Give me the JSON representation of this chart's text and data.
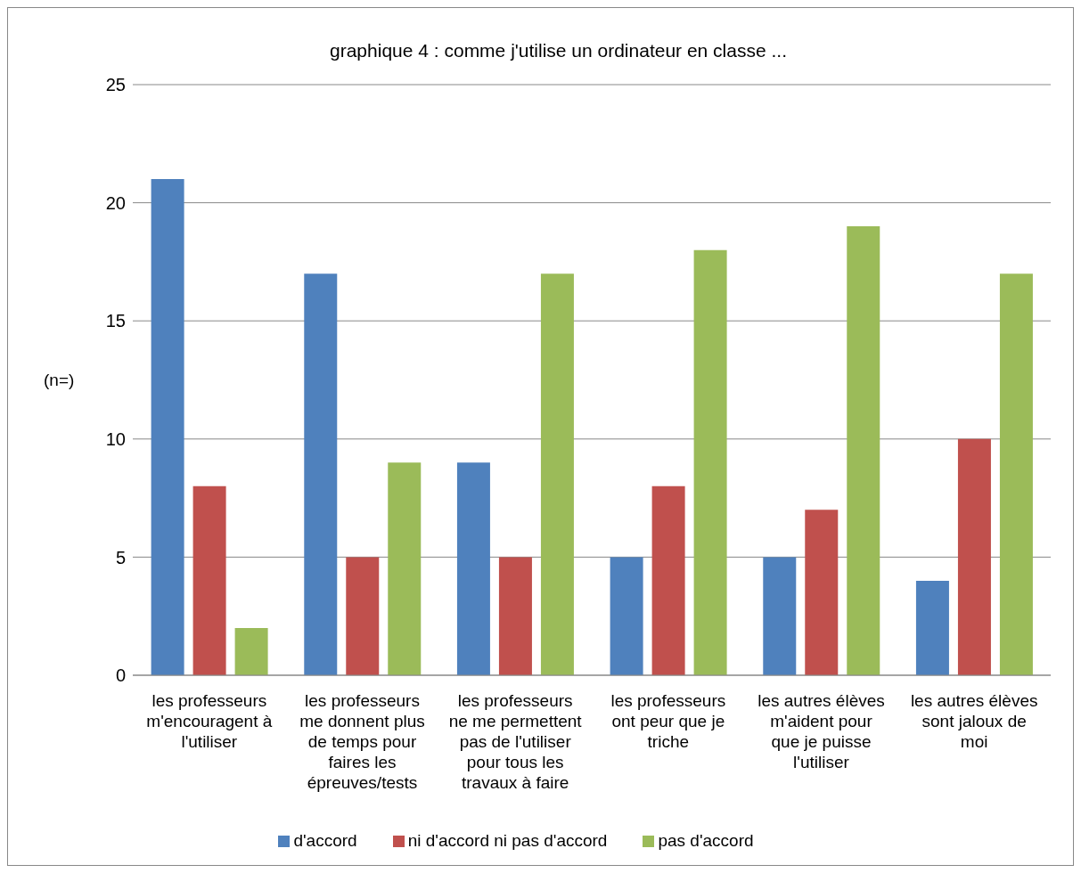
{
  "chart_data": {
    "type": "bar",
    "title": "graphique 4 : comme j'utilise un ordinateur en classe ...",
    "ylabel": "(n=)",
    "categories": [
      "les professeurs m'encouragent à l'utiliser",
      "les professeurs me donnent plus de temps pour faires les épreuves/tests",
      "les professeurs ne me permettent pas de l'utiliser pour tous les travaux à faire",
      "les professeurs ont peur que je triche",
      "les autres élèves m'aident pour que je puisse l'utiliser",
      "les autres élèves sont jaloux de moi"
    ],
    "series": [
      {
        "name": "d'accord",
        "color": "#4f81bd",
        "values": [
          21,
          17,
          9,
          5,
          5,
          4
        ]
      },
      {
        "name": "ni d'accord ni pas d'accord",
        "color": "#c0504d",
        "values": [
          8,
          5,
          5,
          8,
          7,
          10
        ]
      },
      {
        "name": "pas d'accord",
        "color": "#9bbb59",
        "values": [
          2,
          9,
          17,
          18,
          19,
          17
        ]
      }
    ],
    "ylim": [
      0,
      25
    ],
    "yticks": [
      0,
      5,
      10,
      15,
      20,
      25
    ],
    "grid": "y",
    "legend": "bottom"
  }
}
